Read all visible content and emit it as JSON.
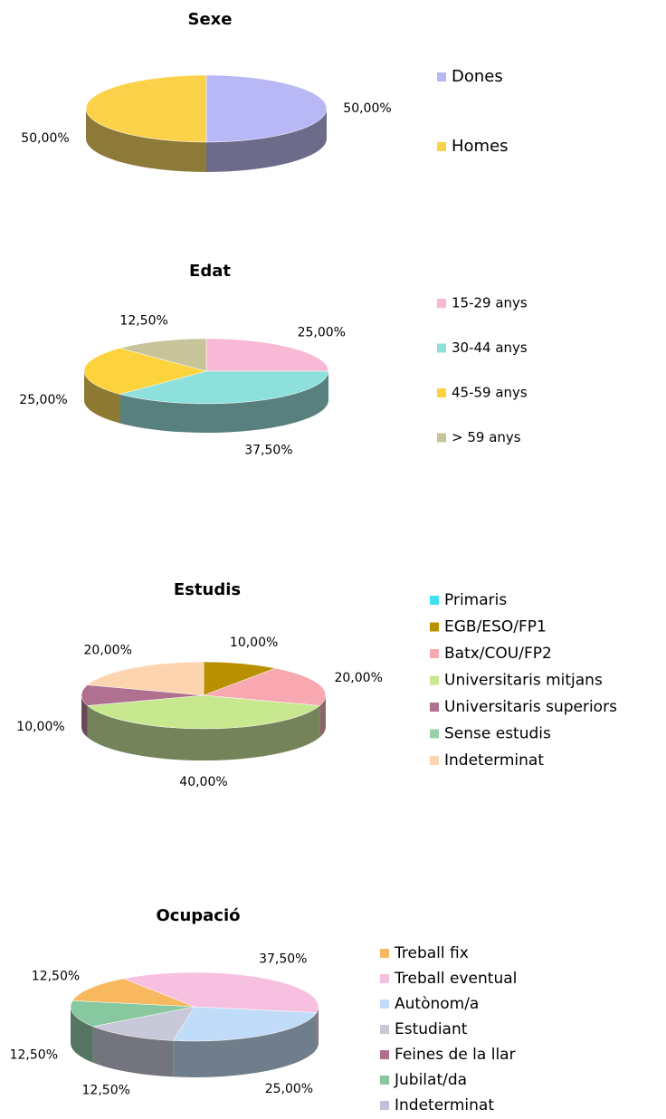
{
  "chart_data": [
    {
      "type": "pie",
      "title": "Sexe",
      "categories": [
        "Dones",
        "Homes"
      ],
      "values": [
        50,
        50
      ],
      "value_labels": [
        "50,00%",
        "50,00%"
      ],
      "colors": [
        "#b8b8f6",
        "#fcd24a"
      ]
    },
    {
      "type": "pie",
      "title": "Edat",
      "categories": [
        "15-29 anys",
        "30-44 anys",
        "45-59 anys",
        "> 59 anys"
      ],
      "values": [
        25,
        37.5,
        25,
        12.5
      ],
      "value_labels": [
        "25,00%",
        "37,50%",
        "25,00%",
        "12,50%"
      ],
      "colors": [
        "#f9b8d4",
        "#8ee0dc",
        "#fcd33c",
        "#c8c49a"
      ]
    },
    {
      "type": "pie",
      "title": "Estudis",
      "categories": [
        "Primaris",
        "EGB/ESO/FP1",
        "Batx/COU/FP2",
        "Universitaris mitjans",
        "Universitaris superiors",
        "Sense estudis",
        "Indeterminat"
      ],
      "values": [
        0,
        10,
        20,
        40,
        10,
        0,
        20
      ],
      "value_labels": [
        null,
        "10,00%",
        "20,00%",
        "40,00%",
        "10,00%",
        null,
        "20,00%"
      ],
      "colors": [
        "#40e0f0",
        "#b89000",
        "#f8a8b0",
        "#c8e890",
        "#b07090",
        "#98d0a8",
        "#fcd4b0"
      ]
    },
    {
      "type": "pie",
      "title": "Ocupació",
      "categories": [
        "Treball fix",
        "Treball eventual",
        "Autònom/a",
        "Estudiant",
        "Feines de la llar",
        "Jubilat/da",
        "Indeterminat"
      ],
      "values": [
        12.5,
        37.5,
        25,
        12.5,
        0,
        12.5,
        0
      ],
      "value_labels": [
        "12,50%",
        "37,50%",
        "25,00%",
        "12,50%",
        null,
        "12,50%",
        null
      ],
      "colors": [
        "#f8b860",
        "#f8c0e0",
        "#c0dcf8",
        "#c8c8d8",
        "#b07090",
        "#88c8a0",
        "#c0c0d8"
      ]
    }
  ]
}
